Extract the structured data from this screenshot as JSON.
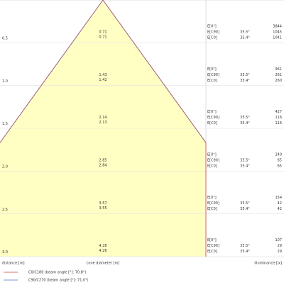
{
  "rows": [
    {
      "distance": "0.5",
      "diameters": [
        "0.71",
        "0.71"
      ],
      "e0": {
        "label": "E[0°]",
        "value": "3844"
      },
      "ec90": {
        "label": "E[C90]",
        "angle": "35.5°",
        "value": "1045"
      },
      "ec0": {
        "label": "E[C0]",
        "angle": "35.4°",
        "value": "1041"
      }
    },
    {
      "distance": "1.0",
      "diameters": [
        "1.43",
        "1.42"
      ],
      "e0": {
        "label": "E[0°]",
        "value": "961"
      },
      "ec90": {
        "label": "E[C90]",
        "angle": "35.5°",
        "value": "261"
      },
      "ec0": {
        "label": "E[C0]",
        "angle": "35.4°",
        "value": "260"
      }
    },
    {
      "distance": "1.5",
      "diameters": [
        "2.14",
        "2.13"
      ],
      "e0": {
        "label": "E[0°]",
        "value": "427"
      },
      "ec90": {
        "label": "E[C90]",
        "angle": "35.5°",
        "value": "116"
      },
      "ec0": {
        "label": "E[C0]",
        "angle": "35.4°",
        "value": "116"
      }
    },
    {
      "distance": "2.0",
      "diameters": [
        "2.85",
        "2.84"
      ],
      "e0": {
        "label": "E[0°]",
        "value": "240"
      },
      "ec90": {
        "label": "E[C90]",
        "angle": "35.5°",
        "value": "65"
      },
      "ec0": {
        "label": "E[C0]",
        "angle": "35.4°",
        "value": "65"
      }
    },
    {
      "distance": "2.5",
      "diameters": [
        "3.57",
        "3.55"
      ],
      "e0": {
        "label": "E[0°]",
        "value": "154"
      },
      "ec90": {
        "label": "E[C90]",
        "angle": "35.5°",
        "value": "42"
      },
      "ec0": {
        "label": "E[C0]",
        "angle": "35.4°",
        "value": "42"
      }
    },
    {
      "distance": "3.0",
      "diameters": [
        "4.28",
        "4.26"
      ],
      "e0": {
        "label": "E[0°]",
        "value": "107"
      },
      "ec90": {
        "label": "E[C90]",
        "angle": "35.5°",
        "value": "29"
      },
      "ec0": {
        "label": "E[C0]",
        "angle": "35.4°",
        "value": "29"
      }
    }
  ],
  "axis_labels": {
    "distance": "distance [m]",
    "diameter": "cone diameter [m]",
    "illuminance": "illuminance [lx]"
  },
  "legend": [
    "C0/C180 (beam angle [°]: 70.8°)",
    "C90/C270 (beam angle [°]: 71.0°)"
  ]
}
